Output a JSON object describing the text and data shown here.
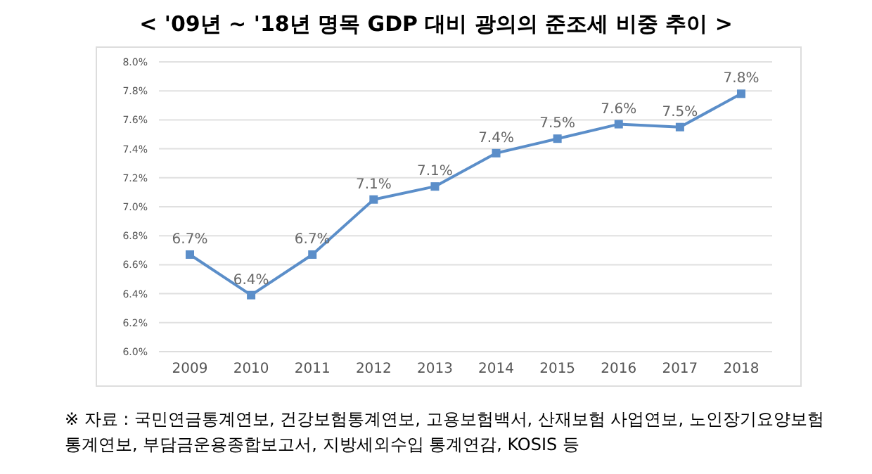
{
  "chart_data": {
    "type": "line",
    "title": "< '09년 ~ '18년 명목 GDP 대비 광의의 준조세 비중 추이 >",
    "categories": [
      "2009",
      "2010",
      "2011",
      "2012",
      "2013",
      "2014",
      "2015",
      "2016",
      "2017",
      "2018"
    ],
    "series": [
      {
        "color": "#5b8ec9",
        "values": [
          6.67,
          6.39,
          6.67,
          7.05,
          7.14,
          7.37,
          7.47,
          7.57,
          7.55,
          7.78
        ],
        "value_labels": [
          "6.7%",
          "6.4%",
          "6.7%",
          "7.1%",
          "7.1%",
          "7.4%",
          "7.5%",
          "7.6%",
          "7.5%",
          "7.8%"
        ]
      }
    ],
    "ylim": [
      6.0,
      8.0
    ],
    "yticks": [
      {
        "value": 6.0,
        "label": "6.0%"
      },
      {
        "value": 6.2,
        "label": "6.2%"
      },
      {
        "value": 6.4,
        "label": "6.4%"
      },
      {
        "value": 6.6,
        "label": "6.6%"
      },
      {
        "value": 6.8,
        "label": "6.8%"
      },
      {
        "value": 7.0,
        "label": "7.0%"
      },
      {
        "value": 7.2,
        "label": "7.2%"
      },
      {
        "value": 7.4,
        "label": "7.4%"
      },
      {
        "value": 7.6,
        "label": "7.6%"
      },
      {
        "value": 7.8,
        "label": "7.8%"
      },
      {
        "value": 8.0,
        "label": "8.0%"
      }
    ],
    "grid": "y",
    "marker": "square",
    "line_style": "solid",
    "legend": false,
    "annotations": [
      "※ 자료 : 국민연금통계연보, 건강보험통계연보, 고용보험백서, 산재보험 사업연보, 노인장기요양보험 통계연보, 부담금운용종합보고서, 지방세외수입 통계연감, KOSIS 등"
    ]
  }
}
